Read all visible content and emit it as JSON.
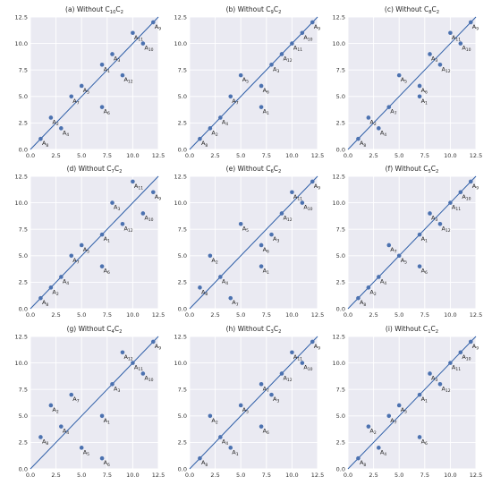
{
  "chart_data": [
    {
      "type": "scatter",
      "title": "(a) Without C10C2",
      "title_parts": [
        "(a) Without C",
        "10",
        "C",
        "2"
      ],
      "xlim": [
        0,
        12.5
      ],
      "ylim": [
        0,
        12.5
      ],
      "xticks": [
        "0.0",
        "2.5",
        "5.0",
        "7.5",
        "10.0",
        "12.5"
      ],
      "yticks": [
        "0.0",
        "2.5",
        "5.0",
        "7.5",
        "10.0",
        "12.5"
      ],
      "grid": true,
      "reference_line": "y = x",
      "points": [
        {
          "label": "A",
          "sub": "1",
          "x": 7,
          "y": 8
        },
        {
          "label": "A",
          "sub": "2",
          "x": 2,
          "y": 3
        },
        {
          "label": "A",
          "sub": "3",
          "x": 8,
          "y": 9
        },
        {
          "label": "A",
          "sub": "4",
          "x": 3,
          "y": 2
        },
        {
          "label": "A",
          "sub": "6",
          "x": 7,
          "y": 4
        },
        {
          "label": "A",
          "sub": "7",
          "x": 4,
          "y": 5
        },
        {
          "label": "A",
          "sub": "8",
          "x": 1,
          "y": 1
        },
        {
          "label": "A",
          "sub": "9",
          "x": 12,
          "y": 12
        },
        {
          "label": "A",
          "sub": "10",
          "x": 11,
          "y": 10
        },
        {
          "label": "A",
          "sub": "11",
          "x": 10,
          "y": 11
        },
        {
          "label": "A",
          "sub": "12",
          "x": 9,
          "y": 7
        },
        {
          "label": "A",
          "sub": "5",
          "x": 5,
          "y": 6
        }
      ]
    },
    {
      "type": "scatter",
      "title": "(b) Without C9C2",
      "title_parts": [
        "(b) Without C",
        "9",
        "C",
        "2"
      ],
      "xlim": [
        0,
        12.5
      ],
      "ylim": [
        0,
        12.5
      ],
      "xticks": [
        "0.0",
        "2.5",
        "5.0",
        "7.5",
        "10.0",
        "12.5"
      ],
      "yticks": [
        "0.0",
        "2.5",
        "5.0",
        "7.5",
        "10.0",
        "12.5"
      ],
      "grid": true,
      "reference_line": "y = x",
      "points": [
        {
          "label": "A",
          "sub": "1",
          "x": 7,
          "y": 4
        },
        {
          "label": "A",
          "sub": "2",
          "x": 2,
          "y": 2
        },
        {
          "label": "A",
          "sub": "3",
          "x": 8,
          "y": 8
        },
        {
          "label": "A",
          "sub": "4",
          "x": 3,
          "y": 3
        },
        {
          "label": "A",
          "sub": "5",
          "x": 5,
          "y": 7
        },
        {
          "label": "A",
          "sub": "6",
          "x": 7,
          "y": 6
        },
        {
          "label": "A",
          "sub": "7",
          "x": 4,
          "y": 5
        },
        {
          "label": "A",
          "sub": "8",
          "x": 1,
          "y": 1
        },
        {
          "label": "A",
          "sub": "9",
          "x": 12,
          "y": 12
        },
        {
          "label": "A",
          "sub": "10",
          "x": 11,
          "y": 11
        },
        {
          "label": "A",
          "sub": "11",
          "x": 10,
          "y": 10
        },
        {
          "label": "A",
          "sub": "12",
          "x": 9,
          "y": 9
        }
      ]
    },
    {
      "type": "scatter",
      "title": "(c) Without C8C2",
      "title_parts": [
        "(c) Without C",
        "8",
        "C",
        "2"
      ],
      "xlim": [
        0,
        12.5
      ],
      "ylim": [
        0,
        12.5
      ],
      "xticks": [
        "0.0",
        "2.5",
        "5.0",
        "7.5",
        "10.0",
        "12.5"
      ],
      "yticks": [
        "0.0",
        "2.5",
        "5.0",
        "7.5",
        "10.0",
        "12.5"
      ],
      "grid": true,
      "reference_line": "y = x",
      "points": [
        {
          "label": "A",
          "sub": "1",
          "x": 7,
          "y": 5
        },
        {
          "label": "A",
          "sub": "2",
          "x": 2,
          "y": 3
        },
        {
          "label": "A",
          "sub": "3",
          "x": 8,
          "y": 9
        },
        {
          "label": "A",
          "sub": "4",
          "x": 3,
          "y": 2
        },
        {
          "label": "A",
          "sub": "5",
          "x": 5,
          "y": 7
        },
        {
          "label": "A",
          "sub": "6",
          "x": 7,
          "y": 6
        },
        {
          "label": "A",
          "sub": "7",
          "x": 4,
          "y": 4
        },
        {
          "label": "A",
          "sub": "8",
          "x": 1,
          "y": 1
        },
        {
          "label": "A",
          "sub": "9",
          "x": 12,
          "y": 12
        },
        {
          "label": "A",
          "sub": "10",
          "x": 11,
          "y": 10
        },
        {
          "label": "A",
          "sub": "11",
          "x": 10,
          "y": 11
        },
        {
          "label": "A",
          "sub": "12",
          "x": 9,
          "y": 8
        }
      ]
    },
    {
      "type": "scatter",
      "title": "(d) Without C7C2",
      "title_parts": [
        "(d) Without C",
        "7",
        "C",
        "2"
      ],
      "xlim": [
        0,
        12.5
      ],
      "ylim": [
        0,
        12.5
      ],
      "xticks": [
        "0.0",
        "2.5",
        "5.0",
        "7.5",
        "10.0",
        "12.5"
      ],
      "yticks": [
        "0.0",
        "2.5",
        "5.0",
        "7.5",
        "10.0",
        "12.5"
      ],
      "grid": true,
      "reference_line": "y = x",
      "points": [
        {
          "label": "A",
          "sub": "1",
          "x": 7,
          "y": 7
        },
        {
          "label": "A",
          "sub": "2",
          "x": 2,
          "y": 2
        },
        {
          "label": "A",
          "sub": "3",
          "x": 8,
          "y": 10
        },
        {
          "label": "A",
          "sub": "4",
          "x": 3,
          "y": 3
        },
        {
          "label": "A",
          "sub": "5",
          "x": 5,
          "y": 6
        },
        {
          "label": "A",
          "sub": "6",
          "x": 7,
          "y": 4
        },
        {
          "label": "A",
          "sub": "7",
          "x": 4,
          "y": 5
        },
        {
          "label": "A",
          "sub": "8",
          "x": 1,
          "y": 1
        },
        {
          "label": "A",
          "sub": "9",
          "x": 12,
          "y": 11
        },
        {
          "label": "A",
          "sub": "10",
          "x": 11,
          "y": 9
        },
        {
          "label": "A",
          "sub": "11",
          "x": 10,
          "y": 12
        },
        {
          "label": "A",
          "sub": "12",
          "x": 9,
          "y": 8
        }
      ]
    },
    {
      "type": "scatter",
      "title": "(e) Without C6C2",
      "title_parts": [
        "(e) Without C",
        "6",
        "C",
        "2"
      ],
      "xlim": [
        0,
        12.5
      ],
      "ylim": [
        0,
        12.5
      ],
      "xticks": [
        "0.0",
        "2.5",
        "5.0",
        "7.5",
        "10.0",
        "12.5"
      ],
      "yticks": [
        "0.0",
        "2.5",
        "5.0",
        "7.5",
        "10.0",
        "12.5"
      ],
      "grid": true,
      "reference_line": "y = x",
      "points": [
        {
          "label": "A",
          "sub": "1",
          "x": 7,
          "y": 4
        },
        {
          "label": "A",
          "sub": "2",
          "x": 2,
          "y": 5
        },
        {
          "label": "A",
          "sub": "3",
          "x": 8,
          "y": 7
        },
        {
          "label": "A",
          "sub": "4",
          "x": 3,
          "y": 3
        },
        {
          "label": "A",
          "sub": "5",
          "x": 5,
          "y": 8
        },
        {
          "label": "A",
          "sub": "6",
          "x": 7,
          "y": 6
        },
        {
          "label": "A",
          "sub": "7",
          "x": 4,
          "y": 1
        },
        {
          "label": "A",
          "sub": "8",
          "x": 1,
          "y": 2
        },
        {
          "label": "A",
          "sub": "9",
          "x": 12,
          "y": 12
        },
        {
          "label": "A",
          "sub": "10",
          "x": 11,
          "y": 10
        },
        {
          "label": "A",
          "sub": "11",
          "x": 10,
          "y": 11
        },
        {
          "label": "A",
          "sub": "12",
          "x": 9,
          "y": 9
        }
      ]
    },
    {
      "type": "scatter",
      "title": "(f) Without C5C2",
      "title_parts": [
        "(f) Without C",
        "5",
        "C",
        "2"
      ],
      "xlim": [
        0,
        12.5
      ],
      "ylim": [
        0,
        12.5
      ],
      "xticks": [
        "0.0",
        "2.5",
        "5.0",
        "7.5",
        "10.0",
        "12.5"
      ],
      "yticks": [
        "0.0",
        "2.5",
        "5.0",
        "7.5",
        "10.0",
        "12.5"
      ],
      "grid": true,
      "reference_line": "y = x",
      "points": [
        {
          "label": "A",
          "sub": "1",
          "x": 7,
          "y": 7
        },
        {
          "label": "A",
          "sub": "2",
          "x": 2,
          "y": 2
        },
        {
          "label": "A",
          "sub": "3",
          "x": 8,
          "y": 9
        },
        {
          "label": "A",
          "sub": "4",
          "x": 3,
          "y": 3
        },
        {
          "label": "A",
          "sub": "5",
          "x": 5,
          "y": 5
        },
        {
          "label": "A",
          "sub": "6",
          "x": 7,
          "y": 4
        },
        {
          "label": "A",
          "sub": "7",
          "x": 4,
          "y": 6
        },
        {
          "label": "A",
          "sub": "8",
          "x": 1,
          "y": 1
        },
        {
          "label": "A",
          "sub": "9",
          "x": 12,
          "y": 12
        },
        {
          "label": "A",
          "sub": "10",
          "x": 11,
          "y": 11
        },
        {
          "label": "A",
          "sub": "11",
          "x": 10,
          "y": 10
        },
        {
          "label": "A",
          "sub": "12",
          "x": 9,
          "y": 8
        }
      ]
    },
    {
      "type": "scatter",
      "title": "(g) Without C4C2",
      "title_parts": [
        "(g) Without C",
        "4",
        "C",
        "2"
      ],
      "xlim": [
        0,
        12.5
      ],
      "ylim": [
        0,
        12.5
      ],
      "xticks": [
        "0.0",
        "2.5",
        "5.0",
        "7.5",
        "10.0",
        "12.5"
      ],
      "yticks": [
        "0.0",
        "2.5",
        "5.0",
        "7.5",
        "10.0",
        "12.5"
      ],
      "grid": true,
      "reference_line": "y = x",
      "points": [
        {
          "label": "A",
          "sub": "1",
          "x": 7,
          "y": 5
        },
        {
          "label": "A",
          "sub": "2",
          "x": 2,
          "y": 6
        },
        {
          "label": "A",
          "sub": "3",
          "x": 8,
          "y": 8
        },
        {
          "label": "A",
          "sub": "4",
          "x": 3,
          "y": 4
        },
        {
          "label": "A",
          "sub": "5",
          "x": 5,
          "y": 2
        },
        {
          "label": "A",
          "sub": "6",
          "x": 7,
          "y": 1
        },
        {
          "label": "A",
          "sub": "7",
          "x": 4,
          "y": 7
        },
        {
          "label": "A",
          "sub": "8",
          "x": 1,
          "y": 3
        },
        {
          "label": "A",
          "sub": "9",
          "x": 12,
          "y": 12
        },
        {
          "label": "A",
          "sub": "10",
          "x": 11,
          "y": 9
        },
        {
          "label": "A",
          "sub": "11",
          "x": 10,
          "y": 10
        },
        {
          "label": "A",
          "sub": "12",
          "x": 9,
          "y": 11
        }
      ]
    },
    {
      "type": "scatter",
      "title": "(h) Without C3C2",
      "title_parts": [
        "(h) Without C",
        "3",
        "C",
        "2"
      ],
      "xlim": [
        0,
        12.5
      ],
      "ylim": [
        0,
        12.5
      ],
      "xticks": [
        "0.0",
        "2.5",
        "5.0",
        "7.5",
        "10.0",
        "12.5"
      ],
      "yticks": [
        "0.0",
        "2.5",
        "5.0",
        "7.5",
        "10.0",
        "12.5"
      ],
      "grid": true,
      "reference_line": "y = x",
      "points": [
        {
          "label": "A",
          "sub": "1",
          "x": 4,
          "y": 2
        },
        {
          "label": "A",
          "sub": "2",
          "x": 2,
          "y": 5
        },
        {
          "label": "A",
          "sub": "3",
          "x": 8,
          "y": 7
        },
        {
          "label": "A",
          "sub": "4",
          "x": 3,
          "y": 3
        },
        {
          "label": "A",
          "sub": "5",
          "x": 5,
          "y": 6
        },
        {
          "label": "A",
          "sub": "6",
          "x": 7,
          "y": 4
        },
        {
          "label": "A",
          "sub": "7",
          "x": 7,
          "y": 8
        },
        {
          "label": "A",
          "sub": "8",
          "x": 1,
          "y": 1
        },
        {
          "label": "A",
          "sub": "9",
          "x": 12,
          "y": 12
        },
        {
          "label": "A",
          "sub": "10",
          "x": 11,
          "y": 10
        },
        {
          "label": "A",
          "sub": "11",
          "x": 10,
          "y": 11
        },
        {
          "label": "A",
          "sub": "12",
          "x": 9,
          "y": 9
        }
      ]
    },
    {
      "type": "scatter",
      "title": "(i) Without C1C2",
      "title_parts": [
        "(i) Without C",
        "1",
        "C",
        "2"
      ],
      "xlim": [
        0,
        12.5
      ],
      "ylim": [
        0,
        12.5
      ],
      "xticks": [
        "0.0",
        "2.5",
        "5.0",
        "7.5",
        "10.0",
        "12.5"
      ],
      "yticks": [
        "0.0",
        "2.5",
        "5.0",
        "7.5",
        "10.0",
        "12.5"
      ],
      "grid": true,
      "reference_line": "y = x",
      "points": [
        {
          "label": "A",
          "sub": "1",
          "x": 7,
          "y": 7
        },
        {
          "label": "A",
          "sub": "2",
          "x": 2,
          "y": 4
        },
        {
          "label": "A",
          "sub": "3",
          "x": 8,
          "y": 9
        },
        {
          "label": "A",
          "sub": "4",
          "x": 3,
          "y": 2
        },
        {
          "label": "A",
          "sub": "5",
          "x": 5,
          "y": 6
        },
        {
          "label": "A",
          "sub": "6",
          "x": 7,
          "y": 3
        },
        {
          "label": "A",
          "sub": "7",
          "x": 4,
          "y": 5
        },
        {
          "label": "A",
          "sub": "8",
          "x": 1,
          "y": 1
        },
        {
          "label": "A",
          "sub": "9",
          "x": 12,
          "y": 12
        },
        {
          "label": "A",
          "sub": "10",
          "x": 11,
          "y": 11
        },
        {
          "label": "A",
          "sub": "11",
          "x": 10,
          "y": 10
        },
        {
          "label": "A",
          "sub": "12",
          "x": 9,
          "y": 8
        }
      ]
    }
  ],
  "style": {
    "background": "#ffffff",
    "plot_background": "#eaeaf2",
    "grid_color": "#ffffff",
    "point_color": "#4c72b0",
    "line_color": "#2f5fa8"
  }
}
